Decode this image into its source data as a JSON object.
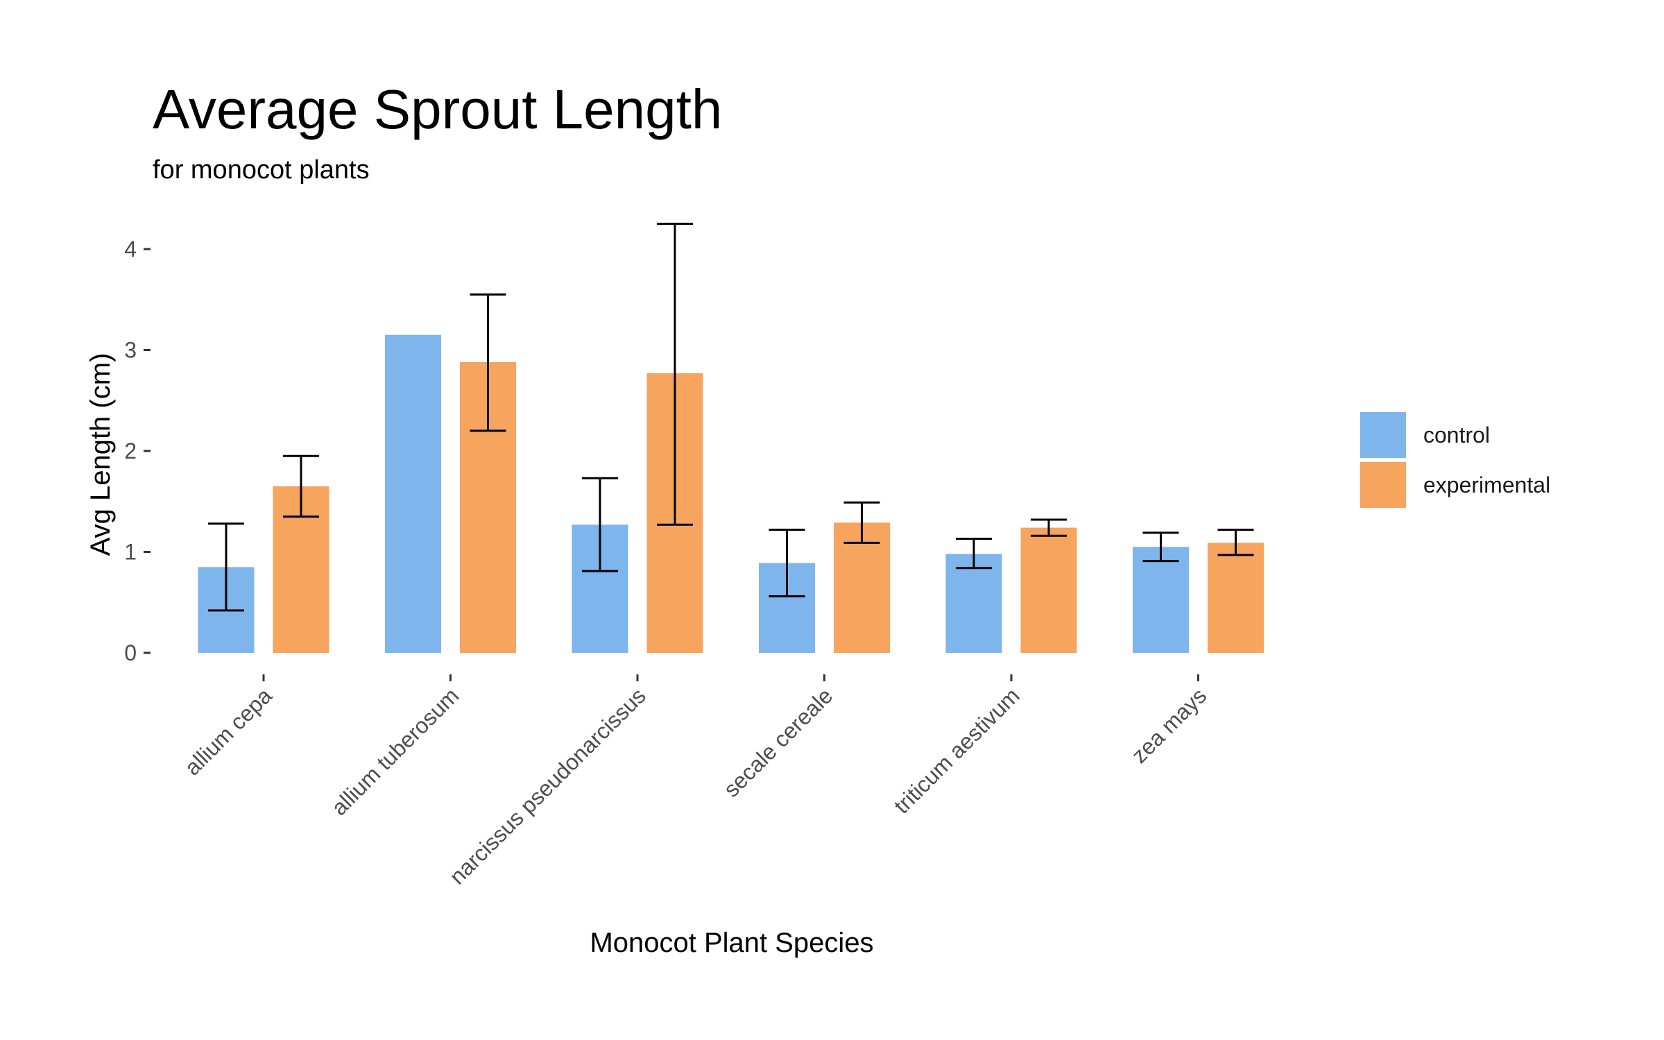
{
  "chart_data": {
    "type": "bar",
    "title": "Average Sprout Length",
    "subtitle": "for monocot plants",
    "xlabel": "Monocot Plant Species",
    "ylabel": "Avg Length (cm)",
    "categories": [
      "allium cepa",
      "allium tuberosum",
      "narcissus pseudonarcissus",
      "secale cereale",
      "triticum aestivum",
      "zea mays"
    ],
    "series": [
      {
        "name": "control",
        "color": "#7EB5EC",
        "values": [
          0.85,
          3.15,
          1.27,
          0.89,
          0.98,
          1.05
        ],
        "error_low": [
          0.42,
          null,
          0.81,
          0.56,
          0.84,
          0.91
        ],
        "error_high": [
          1.28,
          null,
          1.73,
          1.22,
          1.13,
          1.19
        ]
      },
      {
        "name": "experimental",
        "color": "#F6A45E",
        "values": [
          1.65,
          2.88,
          2.77,
          1.29,
          1.24,
          1.09
        ],
        "error_low": [
          1.35,
          2.2,
          1.27,
          1.09,
          1.16,
          0.97
        ],
        "error_high": [
          1.95,
          3.55,
          4.25,
          1.49,
          1.32,
          1.22
        ]
      }
    ],
    "yticks": [
      0,
      1,
      2,
      3,
      4
    ],
    "ylim": [
      0,
      4.4
    ],
    "grid": false,
    "legend_position": "right"
  }
}
